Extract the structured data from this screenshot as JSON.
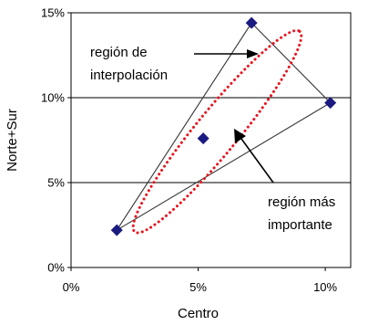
{
  "chart_data": {
    "type": "scatter",
    "xlabel": "Centro",
    "ylabel": "Norte+Sur",
    "xlim": [
      0,
      0.11
    ],
    "ylim": [
      0,
      0.15
    ],
    "x_ticks": [
      {
        "value": 0.0,
        "label": "0%"
      },
      {
        "value": 0.05,
        "label": "5%"
      },
      {
        "value": 0.1,
        "label": "10%"
      }
    ],
    "y_ticks": [
      {
        "value": 0.0,
        "label": "0%"
      },
      {
        "value": 0.05,
        "label": "5%"
      },
      {
        "value": 0.1,
        "label": "10%"
      },
      {
        "value": 0.15,
        "label": "15%"
      }
    ],
    "grid": "horizontal",
    "points": [
      {
        "x": 0.018,
        "y": 0.022
      },
      {
        "x": 0.071,
        "y": 0.144
      },
      {
        "x": 0.102,
        "y": 0.097
      },
      {
        "x": 0.052,
        "y": 0.076
      }
    ],
    "hull": [
      [
        0.018,
        0.022
      ],
      [
        0.071,
        0.144
      ],
      [
        0.102,
        0.097
      ]
    ],
    "ellipse": {
      "cx": 0.0575,
      "cy": 0.08,
      "rx": 0.051,
      "ry": 0.0125,
      "angle_deg": -50.5
    },
    "marker_color": "#1a1a80",
    "ellipse_color": "#e8141e",
    "annotations": [
      {
        "lines": [
          "región de",
          "interpolación"
        ]
      },
      {
        "lines": [
          "región más",
          "importante"
        ]
      }
    ]
  }
}
